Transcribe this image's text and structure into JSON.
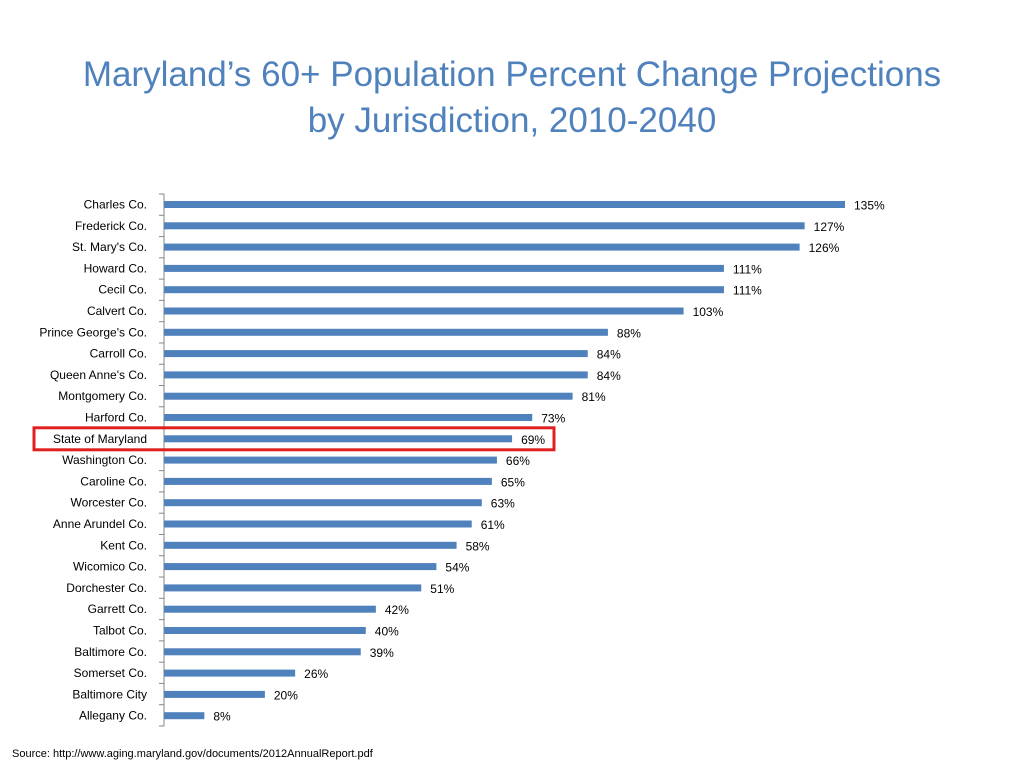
{
  "title": {
    "line1": "Maryland’s 60+ Population Percent Change Projections",
    "line2": "by Jurisdiction, 2010-2040"
  },
  "source": "Source: http://www.aging.maryland.gov/documents/2012AnnualReport.pdf",
  "colors": {
    "title": "#4f81bd",
    "bar": "#4f81bd",
    "highlight": "#e02020"
  },
  "chart_data": {
    "type": "bar",
    "orientation": "horizontal",
    "categories": [
      "Charles Co.",
      "Frederick Co.",
      "St. Mary's Co.",
      "Howard Co.",
      "Cecil Co.",
      "Calvert Co.",
      "Prince George's Co.",
      "Carroll Co.",
      "Queen Anne's Co.",
      "Montgomery Co.",
      "Harford Co.",
      "State of Maryland",
      "Washington Co.",
      "Caroline Co.",
      "Worcester Co.",
      "Anne Arundel Co.",
      "Kent Co.",
      "Wicomico Co.",
      "Dorchester Co.",
      "Garrett Co.",
      "Talbot Co.",
      "Baltimore Co.",
      "Somerset Co.",
      "Baltimore City",
      "Allegany Co."
    ],
    "values": [
      135,
      127,
      126,
      111,
      111,
      103,
      88,
      84,
      84,
      81,
      73,
      69,
      66,
      65,
      63,
      61,
      58,
      54,
      51,
      42,
      40,
      39,
      26,
      20,
      8
    ],
    "value_labels": [
      "135%",
      "127%",
      "126%",
      "111%",
      "111%",
      "103%",
      "88%",
      "84%",
      "84%",
      "81%",
      "73%",
      "69%",
      "66%",
      "65%",
      "63%",
      "61%",
      "58%",
      "54%",
      "51%",
      "42%",
      "40%",
      "39%",
      "26%",
      "20%",
      "8%"
    ],
    "highlighted_category": "State of Maryland",
    "xlim": [
      0,
      135
    ],
    "grid": false,
    "legend": "none"
  }
}
